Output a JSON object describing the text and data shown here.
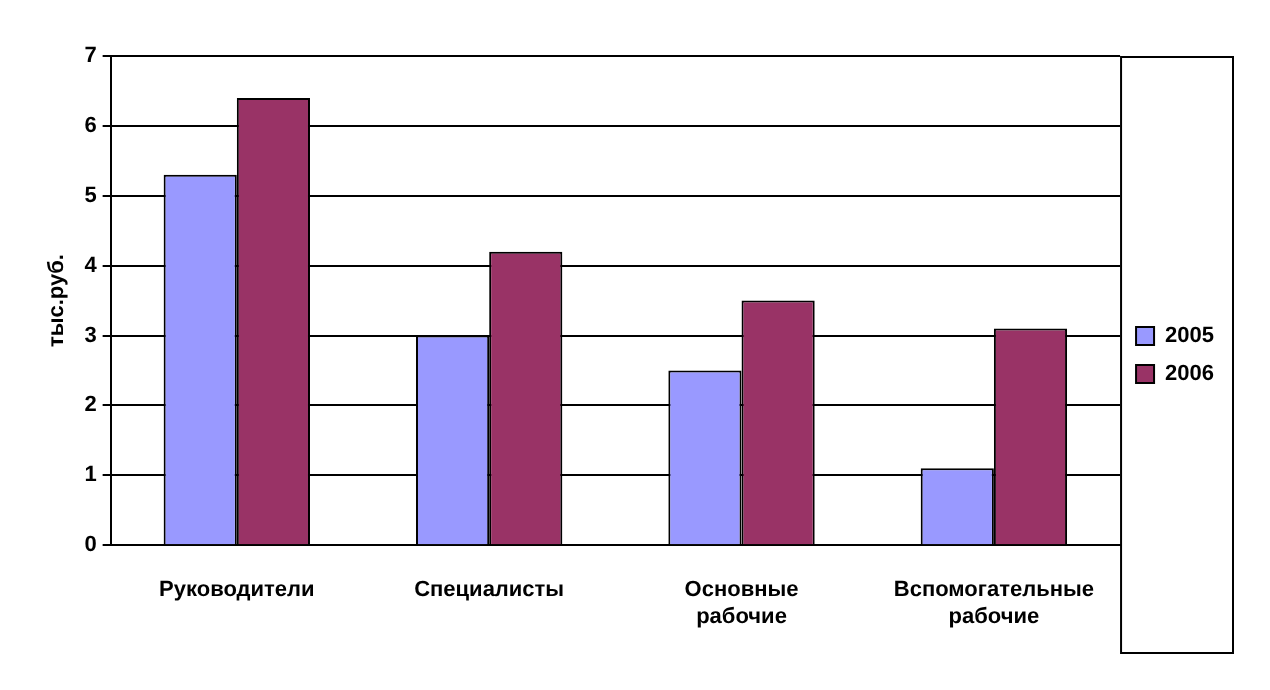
{
  "chart_data": {
    "type": "bar",
    "ylabel": "тыс.руб.",
    "categories": [
      "Руководители",
      "Специалисты",
      "Основные рабочие",
      "Вспомогательные рабочие"
    ],
    "series": [
      {
        "name": "2005",
        "color": "#9999ff",
        "values": [
          5.3,
          3.0,
          2.5,
          1.1
        ]
      },
      {
        "name": "2006",
        "color": "#993366",
        "values": [
          6.4,
          4.2,
          3.5,
          3.1
        ]
      }
    ],
    "ylim": [
      0,
      7
    ],
    "yticks": [
      0,
      1,
      2,
      3,
      4,
      5,
      6,
      7
    ],
    "grid": "y",
    "legend": "right"
  }
}
